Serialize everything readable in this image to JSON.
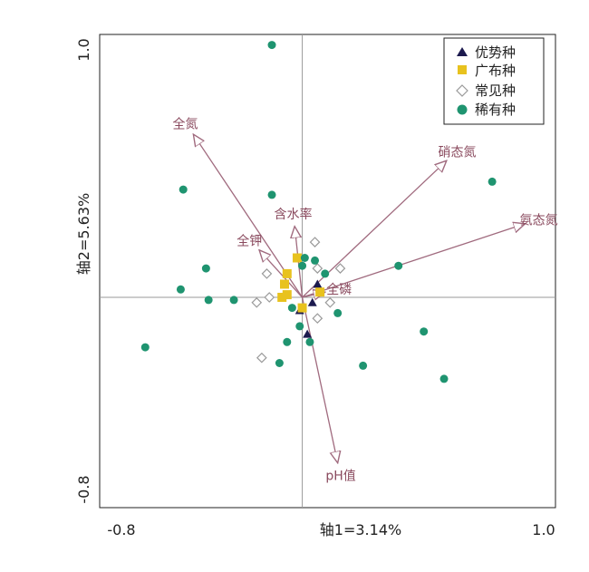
{
  "chart_data": {
    "type": "scatter",
    "subtype": "ordination biplot",
    "xlabel": "轴1=3.14%",
    "ylabel": "轴2=5.63%",
    "xlim": [
      -0.8,
      1.0
    ],
    "ylim": [
      -0.8,
      1.0
    ],
    "x_tick_labels": [
      "-0.8",
      "1.0"
    ],
    "y_tick_labels": [
      "1.0",
      "-0.8"
    ],
    "grid": false,
    "zero_lines": true,
    "legend_position": "top-right",
    "colors": {
      "dominant": "#1c1a4e",
      "widespread": "#e8c21e",
      "common": "#9a9a9a",
      "rare": "#1f9470",
      "vector": "#a06a7e",
      "vector_label": "#8a4a5e",
      "axis": "#9a9a9a"
    },
    "legend": [
      {
        "key": "dominant",
        "label": "优势种",
        "marker": "triangle"
      },
      {
        "key": "widespread",
        "label": "广布种",
        "marker": "square"
      },
      {
        "key": "common",
        "label": "常见种",
        "marker": "diamond-open"
      },
      {
        "key": "rare",
        "label": "稀有种",
        "marker": "circle"
      }
    ],
    "vectors": [
      {
        "name": "全氮",
        "x": -0.43,
        "y": 0.62
      },
      {
        "name": "含水率",
        "x": -0.03,
        "y": 0.27
      },
      {
        "name": "全钾",
        "x": -0.17,
        "y": 0.18
      },
      {
        "name": "硝态氮",
        "x": 0.57,
        "y": 0.52
      },
      {
        "name": "氨态氮",
        "x": 0.88,
        "y": 0.28
      },
      {
        "name": "全磷",
        "x": 0.09,
        "y": 0.02
      },
      {
        "name": "pH值",
        "x": 0.14,
        "y": -0.63
      }
    ],
    "series": [
      {
        "name": "优势种",
        "key": "dominant",
        "points": [
          {
            "x": 0.06,
            "y": 0.05
          },
          {
            "x": 0.04,
            "y": -0.02
          },
          {
            "x": -0.01,
            "y": -0.05
          },
          {
            "x": 0.02,
            "y": -0.14
          }
        ]
      },
      {
        "name": "广布种",
        "key": "widespread",
        "points": [
          {
            "x": -0.02,
            "y": 0.15
          },
          {
            "x": -0.06,
            "y": 0.09
          },
          {
            "x": -0.07,
            "y": 0.05
          },
          {
            "x": -0.06,
            "y": 0.01
          },
          {
            "x": -0.08,
            "y": 0.0
          },
          {
            "x": 0.07,
            "y": 0.02
          },
          {
            "x": 0.0,
            "y": -0.04
          }
        ]
      },
      {
        "name": "常见种",
        "key": "common",
        "points": [
          {
            "x": 0.05,
            "y": 0.21
          },
          {
            "x": 0.06,
            "y": 0.11
          },
          {
            "x": 0.15,
            "y": 0.11
          },
          {
            "x": -0.14,
            "y": 0.09
          },
          {
            "x": -0.13,
            "y": 0.0
          },
          {
            "x": -0.18,
            "y": -0.02
          },
          {
            "x": 0.11,
            "y": -0.02
          },
          {
            "x": 0.06,
            "y": -0.08
          },
          {
            "x": -0.16,
            "y": -0.23
          }
        ]
      },
      {
        "name": "稀有种",
        "key": "rare",
        "points": [
          {
            "x": -0.12,
            "y": 0.96
          },
          {
            "x": -0.47,
            "y": 0.41
          },
          {
            "x": -0.12,
            "y": 0.39
          },
          {
            "x": 0.75,
            "y": 0.44
          },
          {
            "x": -0.38,
            "y": 0.11
          },
          {
            "x": -0.48,
            "y": 0.03
          },
          {
            "x": -0.37,
            "y": -0.01
          },
          {
            "x": -0.27,
            "y": -0.01
          },
          {
            "x": 0.38,
            "y": 0.12
          },
          {
            "x": 0.09,
            "y": 0.09
          },
          {
            "x": 0.01,
            "y": 0.15
          },
          {
            "x": 0.05,
            "y": 0.14
          },
          {
            "x": 0.0,
            "y": 0.12
          },
          {
            "x": -0.04,
            "y": -0.04
          },
          {
            "x": 0.14,
            "y": -0.06
          },
          {
            "x": -0.01,
            "y": -0.11
          },
          {
            "x": 0.03,
            "y": -0.17
          },
          {
            "x": -0.06,
            "y": -0.17
          },
          {
            "x": -0.09,
            "y": -0.25
          },
          {
            "x": -0.62,
            "y": -0.19
          },
          {
            "x": 0.48,
            "y": -0.13
          },
          {
            "x": 0.24,
            "y": -0.26
          },
          {
            "x": 0.56,
            "y": -0.31
          }
        ]
      }
    ]
  }
}
